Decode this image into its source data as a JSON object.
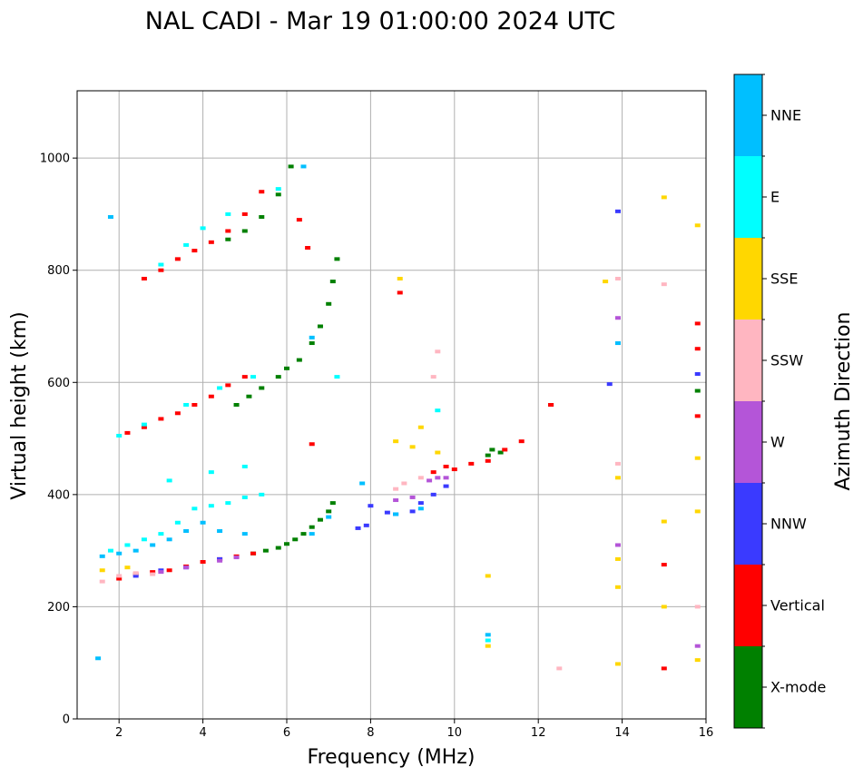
{
  "chart_data": {
    "type": "scatter",
    "title": "NAL CADI - Mar 19 01:00:00 2024 UTC",
    "xlabel": "Frequency (MHz)",
    "ylabel": "Virtual height (km)",
    "xlim": [
      1,
      16
    ],
    "ylim": [
      0,
      1120
    ],
    "xticks": [
      2,
      4,
      6,
      8,
      10,
      12,
      14,
      16
    ],
    "yticks": [
      0,
      200,
      400,
      600,
      800,
      1000
    ],
    "grid": true,
    "colorbar": {
      "title": "Azimuth Direction",
      "categories": [
        {
          "name": "X-mode",
          "color": "#008000"
        },
        {
          "name": "Vertical",
          "color": "#ff0000"
        },
        {
          "name": "NNW",
          "color": "#3a3aff"
        },
        {
          "name": "W",
          "color": "#b455d8"
        },
        {
          "name": "SSW",
          "color": "#ffb6c1"
        },
        {
          "name": "SSE",
          "color": "#ffd700"
        },
        {
          "name": "E",
          "color": "#00ffff"
        },
        {
          "name": "NNE",
          "color": "#00bfff"
        }
      ]
    },
    "series": [
      {
        "name": "X-mode",
        "points": [
          [
            5.2,
            295
          ],
          [
            5.5,
            300
          ],
          [
            5.8,
            305
          ],
          [
            6.0,
            312
          ],
          [
            6.2,
            320
          ],
          [
            6.4,
            330
          ],
          [
            6.6,
            342
          ],
          [
            6.8,
            355
          ],
          [
            7.0,
            370
          ],
          [
            7.1,
            385
          ],
          [
            4.8,
            560
          ],
          [
            5.1,
            575
          ],
          [
            5.4,
            590
          ],
          [
            5.8,
            610
          ],
          [
            6.0,
            625
          ],
          [
            6.3,
            640
          ],
          [
            6.6,
            670
          ],
          [
            6.8,
            700
          ],
          [
            7.0,
            740
          ],
          [
            7.1,
            780
          ],
          [
            7.2,
            820
          ],
          [
            4.6,
            855
          ],
          [
            5.0,
            870
          ],
          [
            5.4,
            895
          ],
          [
            5.8,
            935
          ],
          [
            6.1,
            985
          ],
          [
            10.8,
            470
          ],
          [
            10.9,
            480
          ],
          [
            11.1,
            475
          ],
          [
            12.3,
            560
          ],
          [
            15.8,
            585
          ]
        ]
      },
      {
        "name": "Vertical",
        "points": [
          [
            2.0,
            250
          ],
          [
            2.4,
            258
          ],
          [
            2.8,
            262
          ],
          [
            3.2,
            265
          ],
          [
            3.6,
            272
          ],
          [
            4.0,
            280
          ],
          [
            4.4,
            285
          ],
          [
            4.8,
            290
          ],
          [
            5.2,
            295
          ],
          [
            2.2,
            510
          ],
          [
            2.6,
            520
          ],
          [
            3.0,
            535
          ],
          [
            3.4,
            545
          ],
          [
            3.8,
            560
          ],
          [
            4.2,
            575
          ],
          [
            4.6,
            595
          ],
          [
            5.0,
            610
          ],
          [
            2.6,
            785
          ],
          [
            3.0,
            800
          ],
          [
            3.4,
            820
          ],
          [
            3.8,
            835
          ],
          [
            4.2,
            850
          ],
          [
            4.6,
            870
          ],
          [
            5.0,
            900
          ],
          [
            5.4,
            940
          ],
          [
            9.5,
            440
          ],
          [
            9.8,
            450
          ],
          [
            10.0,
            445
          ],
          [
            10.4,
            455
          ],
          [
            10.8,
            460
          ],
          [
            11.2,
            480
          ],
          [
            11.6,
            495
          ],
          [
            12.3,
            560
          ],
          [
            8.7,
            760
          ],
          [
            15.0,
            275
          ],
          [
            15.0,
            90
          ],
          [
            15.8,
            705
          ],
          [
            15.8,
            660
          ],
          [
            15.8,
            540
          ],
          [
            6.6,
            490
          ],
          [
            6.5,
            840
          ],
          [
            6.3,
            890
          ]
        ]
      },
      {
        "name": "NNW",
        "points": [
          [
            2.4,
            255
          ],
          [
            3.0,
            265
          ],
          [
            3.6,
            270
          ],
          [
            4.4,
            285
          ],
          [
            8.0,
            380
          ],
          [
            8.4,
            368
          ],
          [
            8.6,
            365
          ],
          [
            9.0,
            370
          ],
          [
            9.2,
            385
          ],
          [
            9.5,
            400
          ],
          [
            9.8,
            415
          ],
          [
            7.7,
            340
          ],
          [
            7.9,
            345
          ],
          [
            13.9,
            905
          ],
          [
            13.7,
            597
          ],
          [
            15.8,
            615
          ]
        ]
      },
      {
        "name": "W",
        "points": [
          [
            3.0,
            262
          ],
          [
            3.6,
            270
          ],
          [
            4.4,
            282
          ],
          [
            4.8,
            288
          ],
          [
            8.6,
            390
          ],
          [
            9.0,
            395
          ],
          [
            9.4,
            425
          ],
          [
            9.6,
            430
          ],
          [
            9.8,
            430
          ],
          [
            13.9,
            715
          ],
          [
            13.9,
            670
          ],
          [
            13.9,
            310
          ],
          [
            15.8,
            130
          ]
        ]
      },
      {
        "name": "SSW",
        "points": [
          [
            1.6,
            245
          ],
          [
            2.0,
            255
          ],
          [
            2.4,
            260
          ],
          [
            2.8,
            258
          ],
          [
            8.6,
            410
          ],
          [
            8.8,
            420
          ],
          [
            9.2,
            430
          ],
          [
            9.5,
            610
          ],
          [
            9.6,
            655
          ],
          [
            12.5,
            90
          ],
          [
            13.9,
            455
          ],
          [
            13.9,
            785
          ],
          [
            15.0,
            775
          ],
          [
            15.8,
            200
          ]
        ]
      },
      {
        "name": "SSE",
        "points": [
          [
            1.6,
            265
          ],
          [
            2.2,
            270
          ],
          [
            8.6,
            495
          ],
          [
            8.7,
            785
          ],
          [
            9.0,
            485
          ],
          [
            9.2,
            520
          ],
          [
            9.6,
            475
          ],
          [
            10.8,
            130
          ],
          [
            10.8,
            255
          ],
          [
            13.6,
            780
          ],
          [
            13.9,
            430
          ],
          [
            13.9,
            285
          ],
          [
            13.9,
            235
          ],
          [
            13.9,
            98
          ],
          [
            15.0,
            930
          ],
          [
            15.0,
            352
          ],
          [
            15.0,
            200
          ],
          [
            15.8,
            880
          ],
          [
            15.8,
            465
          ],
          [
            15.8,
            370
          ],
          [
            15.8,
            105
          ]
        ]
      },
      {
        "name": "E",
        "points": [
          [
            1.8,
            300
          ],
          [
            2.2,
            310
          ],
          [
            2.6,
            320
          ],
          [
            3.0,
            330
          ],
          [
            3.4,
            350
          ],
          [
            3.8,
            375
          ],
          [
            4.2,
            380
          ],
          [
            4.6,
            385
          ],
          [
            5.0,
            395
          ],
          [
            5.4,
            400
          ],
          [
            3.2,
            425
          ],
          [
            4.2,
            440
          ],
          [
            5.0,
            450
          ],
          [
            2.0,
            505
          ],
          [
            2.6,
            525
          ],
          [
            3.6,
            560
          ],
          [
            4.4,
            590
          ],
          [
            5.2,
            610
          ],
          [
            3.0,
            810
          ],
          [
            3.6,
            845
          ],
          [
            4.0,
            875
          ],
          [
            4.6,
            900
          ],
          [
            5.8,
            945
          ],
          [
            7.2,
            610
          ],
          [
            9.6,
            550
          ],
          [
            10.8,
            140
          ]
        ]
      },
      {
        "name": "NNE",
        "points": [
          [
            1.6,
            290
          ],
          [
            2.0,
            295
          ],
          [
            2.4,
            300
          ],
          [
            2.8,
            310
          ],
          [
            3.2,
            320
          ],
          [
            3.6,
            335
          ],
          [
            4.0,
            350
          ],
          [
            4.4,
            335
          ],
          [
            5.0,
            330
          ],
          [
            6.6,
            330
          ],
          [
            7.0,
            360
          ],
          [
            7.8,
            420
          ],
          [
            8.6,
            365
          ],
          [
            9.2,
            375
          ],
          [
            1.5,
            108
          ],
          [
            1.8,
            895
          ],
          [
            6.4,
            985
          ],
          [
            6.6,
            680
          ],
          [
            13.9,
            670
          ],
          [
            10.8,
            150
          ]
        ]
      }
    ]
  }
}
